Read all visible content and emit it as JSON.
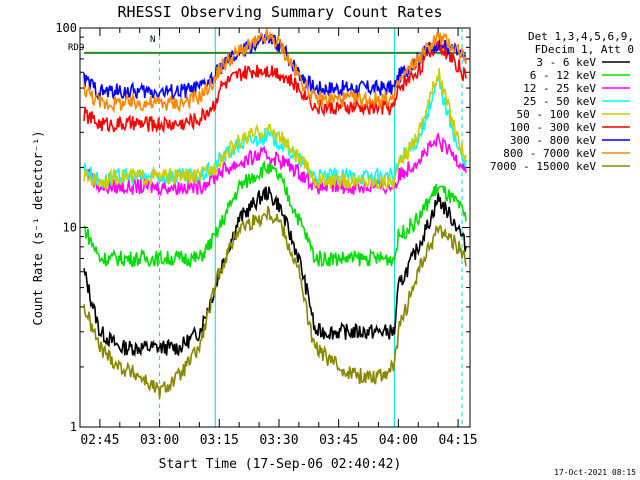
{
  "chart_data": {
    "type": "line",
    "title": "RHESSI Observing Summary Count Rates",
    "xlabel": "Start Time (17-Sep-06 02:40:42)",
    "ylabel": "Count Rate (s⁻¹ detector⁻¹)",
    "y_scale": "log",
    "ylim": [
      1,
      100
    ],
    "xlim": [
      "02:40",
      "04:18"
    ],
    "x_tick_labels": [
      "02:45",
      "03:00",
      "03:15",
      "03:30",
      "03:45",
      "04:00",
      "04:15"
    ],
    "y_tick_labels": [
      "1",
      "10",
      "100"
    ],
    "legend_header": [
      "Det 1,3,4,5,6,9,",
      "FDecim 1, Att 0"
    ],
    "legend_position": "right",
    "footer_timestamp": "17-Oct-2021 08:15",
    "annotations": {
      "rdo": "RDO",
      "n": "N"
    },
    "x": [
      "02:41",
      "02:45",
      "02:50",
      "02:55",
      "03:00",
      "03:05",
      "03:10",
      "03:14",
      "03:15",
      "03:20",
      "03:25",
      "03:27",
      "03:30",
      "03:35",
      "03:38",
      "03:39",
      "03:45",
      "03:50",
      "03:55",
      "03:59",
      "04:00",
      "04:05",
      "04:08",
      "04:10",
      "04:15",
      "04:17"
    ],
    "series": [
      {
        "name": "3 - 6 keV",
        "color": "#000000",
        "values": [
          6,
          3,
          2.5,
          2.5,
          2.5,
          2.5,
          3,
          5,
          6,
          11,
          14,
          15,
          13,
          7,
          4,
          3,
          3,
          3,
          3,
          3,
          5,
          8,
          11,
          14,
          10,
          8
        ]
      },
      {
        "name": "6 - 12 keV",
        "color": "#00dd00",
        "values": [
          10,
          7,
          7,
          7,
          7,
          7,
          7,
          9,
          10,
          16,
          19,
          20,
          18,
          11,
          8,
          7,
          7,
          7,
          7,
          7,
          9,
          11,
          14,
          16,
          13,
          11
        ]
      },
      {
        "name": "12 - 25 keV",
        "color": "#ff00ff",
        "values": [
          20,
          16,
          16,
          16,
          16,
          16,
          16,
          18,
          19,
          21,
          23,
          23,
          22,
          19,
          17,
          16,
          16,
          16,
          16,
          16,
          18,
          22,
          25,
          27,
          22,
          20
        ]
      },
      {
        "name": "25 - 50 keV",
        "color": "#00ffff",
        "values": [
          20,
          17,
          18,
          18,
          18,
          18,
          18,
          20,
          22,
          26,
          28,
          29,
          27,
          22,
          19,
          18,
          18,
          18,
          18,
          18,
          21,
          28,
          40,
          55,
          25,
          20
        ]
      },
      {
        "name": "50 - 100 keV",
        "color": "#cccc00",
        "values": [
          18,
          17,
          18,
          18,
          18,
          18,
          18,
          20,
          22,
          27,
          30,
          31,
          29,
          22,
          19,
          17,
          17,
          17,
          17,
          17,
          20,
          30,
          45,
          60,
          28,
          22
        ]
      },
      {
        "name": "100 - 300 keV",
        "color": "#ff0000",
        "values": [
          37,
          33,
          33,
          33,
          33,
          33,
          35,
          42,
          50,
          58,
          62,
          62,
          60,
          50,
          44,
          40,
          40,
          40,
          40,
          40,
          50,
          62,
          75,
          85,
          65,
          55
        ]
      },
      {
        "name": "300 - 800 keV",
        "color": "#0000ff",
        "values": [
          55,
          48,
          48,
          48,
          48,
          48,
          50,
          57,
          63,
          75,
          85,
          88,
          83,
          60,
          52,
          50,
          50,
          50,
          50,
          50,
          57,
          70,
          80,
          85,
          75,
          68
        ]
      },
      {
        "name": "800 - 7000 keV",
        "color": "#ff8800",
        "values": [
          50,
          42,
          42,
          42,
          42,
          42,
          45,
          55,
          63,
          76,
          86,
          90,
          84,
          57,
          47,
          44,
          44,
          44,
          44,
          44,
          53,
          70,
          82,
          90,
          78,
          70
        ]
      },
      {
        "name": "7000 - 15000 keV",
        "color": "#888800",
        "values": [
          4,
          2.5,
          2.0,
          1.8,
          1.5,
          1.8,
          2.5,
          5,
          6,
          10,
          11,
          12,
          11,
          6,
          3,
          2.5,
          2,
          1.8,
          1.8,
          2,
          3,
          6,
          8,
          10,
          8,
          7
        ]
      }
    ],
    "reference_lines": [
      {
        "name": "RDO level",
        "color": "#228822",
        "value": 75
      }
    ]
  }
}
